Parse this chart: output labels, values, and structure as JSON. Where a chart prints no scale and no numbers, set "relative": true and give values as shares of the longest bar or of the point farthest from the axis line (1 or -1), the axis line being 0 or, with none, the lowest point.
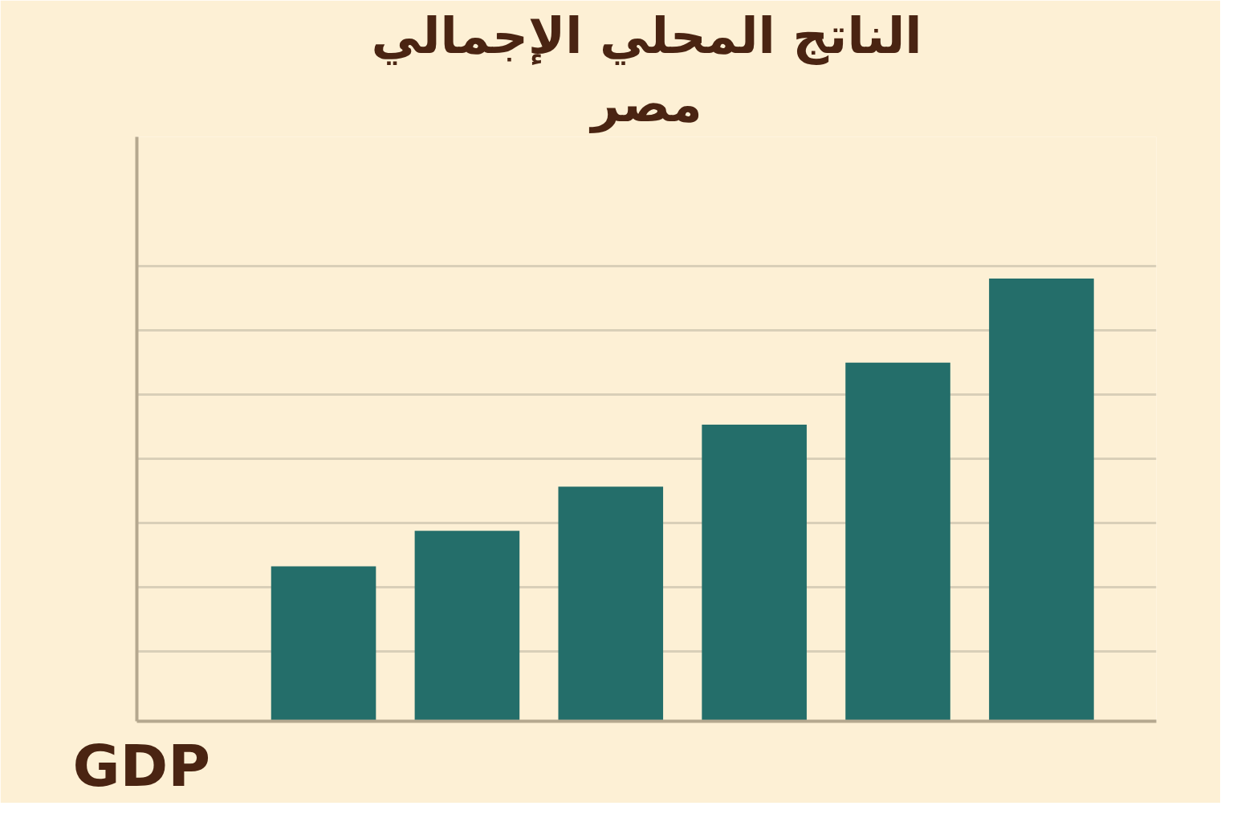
{
  "chart_data": {
    "type": "bar",
    "title": "الناتج المحلي الإجمالي",
    "subtitle": "مصر",
    "annotations": [
      "GDP"
    ],
    "categories": [
      null,
      null,
      null,
      null,
      null,
      null
    ],
    "values": [
      0.35,
      0.43,
      0.53,
      0.67,
      0.81,
      1.0
    ],
    "color": "#246e6a",
    "relative": true,
    "grid": "y"
  }
}
